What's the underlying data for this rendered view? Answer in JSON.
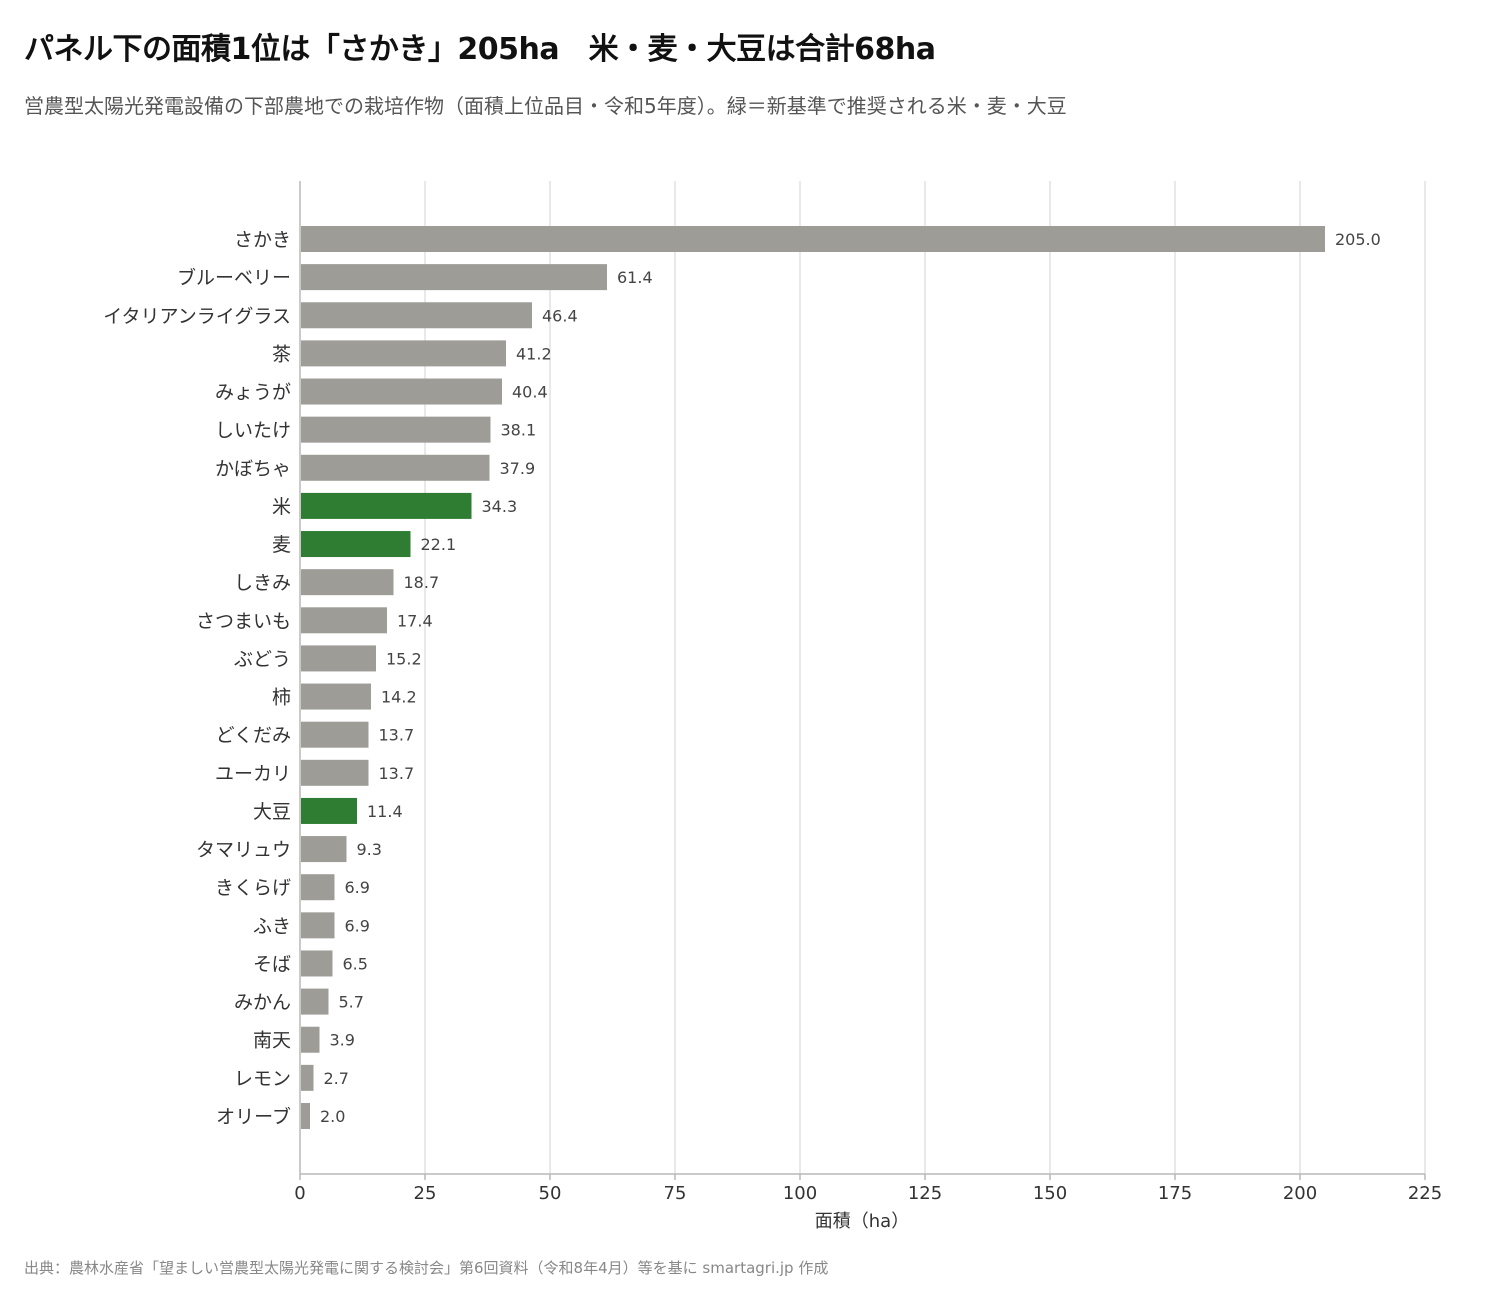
{
  "chart_data": {
    "type": "bar",
    "orientation": "horizontal",
    "title": "パネル下の面積1位は「さかき」205ha　米・麦・大豆は合計68ha",
    "subtitle": "営農型太陽光発電設備の下部農地での栽培作物（面積上位品目・令和5年度）。緑＝新基準で推奨される米・麦・大豆",
    "xlabel": "面積（ha）",
    "ylabel": "",
    "xlim": [
      0,
      225
    ],
    "xticks": [
      0,
      25,
      50,
      75,
      100,
      125,
      150,
      175,
      200,
      225
    ],
    "grid": true,
    "categories": [
      "さかき",
      "ブルーベリー",
      "イタリアンライグラス",
      "茶",
      "みょうが",
      "しいたけ",
      "かぼちゃ",
      "米",
      "麦",
      "しきみ",
      "さつまいも",
      "ぶどう",
      "柿",
      "どくだみ",
      "ユーカリ",
      "大豆",
      "タマリュウ",
      "きくらげ",
      "ふき",
      "そば",
      "みかん",
      "南天",
      "レモン",
      "オリーブ"
    ],
    "values": [
      205.0,
      61.4,
      46.4,
      41.2,
      40.4,
      38.1,
      37.9,
      34.3,
      22.1,
      18.7,
      17.4,
      15.2,
      14.2,
      13.7,
      13.7,
      11.4,
      9.3,
      6.9,
      6.9,
      6.5,
      5.7,
      3.9,
      2.7,
      2.0
    ],
    "value_labels": [
      "205.0",
      "61.4",
      "46.4",
      "41.2",
      "40.4",
      "38.1",
      "37.9",
      "34.3",
      "22.1",
      "18.7",
      "17.4",
      "15.2",
      "14.2",
      "13.7",
      "13.7",
      "11.4",
      "9.3",
      "6.9",
      "6.9",
      "6.5",
      "5.7",
      "3.9",
      "2.7",
      "2.0"
    ],
    "highlighted": [
      "米",
      "麦",
      "大豆"
    ],
    "colors": {
      "default_bar": "#9d9c97",
      "highlight_bar": "#2e7d32",
      "grid": "#e2e2e2",
      "axis": "#b8b8b8"
    }
  },
  "source": "出典：農林水産省「望ましい営農型太陽光発電に関する検討会」第6回資料（令和8年4月）等を基に smartagri.jp 作成"
}
